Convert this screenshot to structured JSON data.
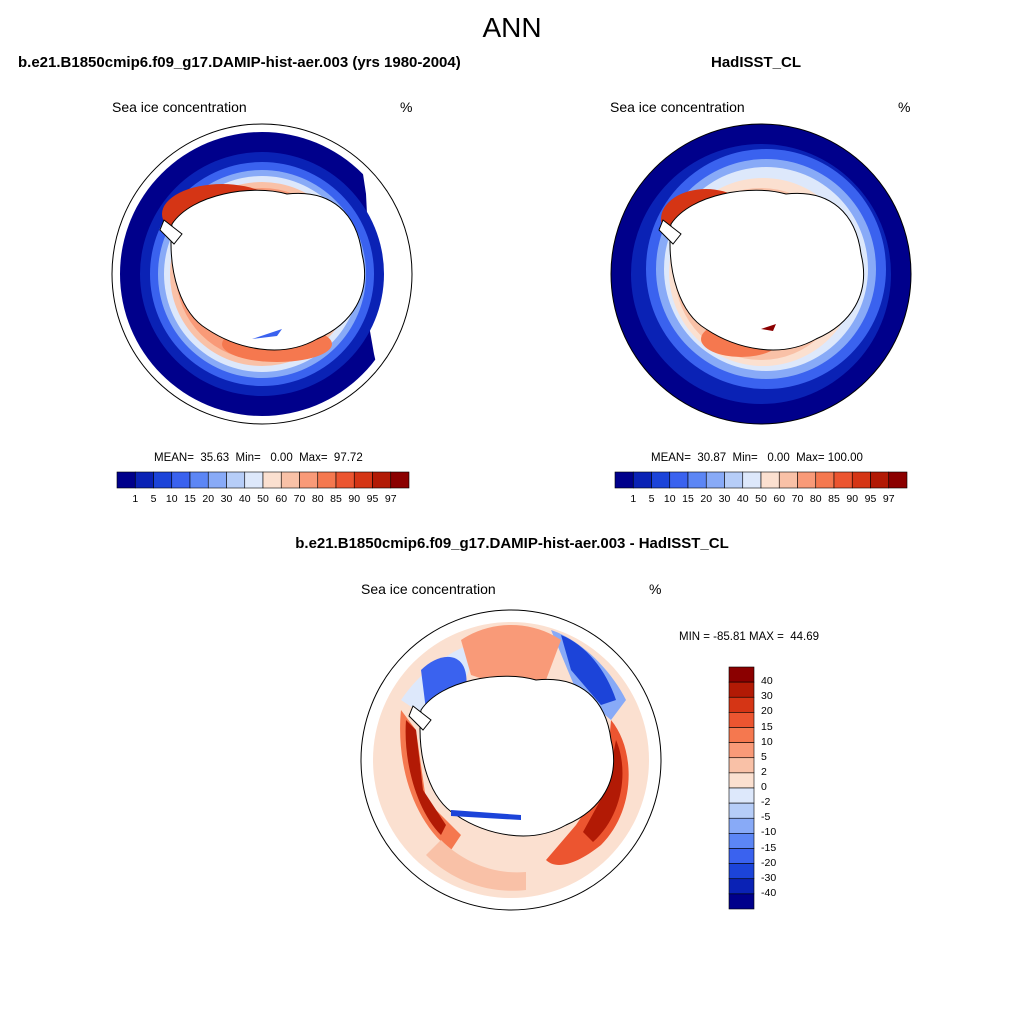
{
  "title": "ANN",
  "panels": {
    "model": {
      "title": "b.e21.B1850cmip6.f09_g17.DAMIP-hist-aer.003 (yrs 1980-2004)",
      "variable": "Sea ice concentration",
      "units": "%",
      "stats": "MEAN=  35.63  Min=   0.00  Max=  97.72"
    },
    "obs": {
      "title": "HadISST_CL",
      "variable": "Sea ice concentration",
      "units": "%",
      "stats": "MEAN=  30.87  Min=   0.00  Max= 100.00"
    },
    "diff": {
      "title": "b.e21.B1850cmip6.f09_g17.DAMIP-hist-aer.003 - HadISST_CL",
      "variable": "Sea ice concentration",
      "units": "%",
      "stats": "MIN = -85.81 MAX =  44.69"
    }
  },
  "colorbar_abs": {
    "labels": [
      "1",
      "5",
      "10",
      "15",
      "20",
      "30",
      "40",
      "50",
      "60",
      "70",
      "80",
      "85",
      "90",
      "95",
      "97"
    ],
    "colors": [
      "#00008b",
      "#0a22b5",
      "#1c44d9",
      "#3a62ef",
      "#5c86f5",
      "#88aaf7",
      "#b6cdf8",
      "#dde8fb",
      "#fbe0d0",
      "#f9c1a7",
      "#f99a78",
      "#f5784f",
      "#ec5530",
      "#d53515",
      "#b21a05",
      "#8b0000"
    ]
  },
  "colorbar_diff": {
    "labels": [
      "40",
      "30",
      "20",
      "15",
      "10",
      "5",
      "2",
      "0",
      "-2",
      "-5",
      "-10",
      "-15",
      "-20",
      "-30",
      "-40"
    ],
    "colors": [
      "#8b0000",
      "#b21a05",
      "#d53515",
      "#ec5530",
      "#f5784f",
      "#f99a78",
      "#f9c1a7",
      "#fbe0d0",
      "#dde8fb",
      "#b6cdf8",
      "#88aaf7",
      "#5c86f5",
      "#3a62ef",
      "#1c44d9",
      "#0a22b5",
      "#00008b"
    ]
  }
}
